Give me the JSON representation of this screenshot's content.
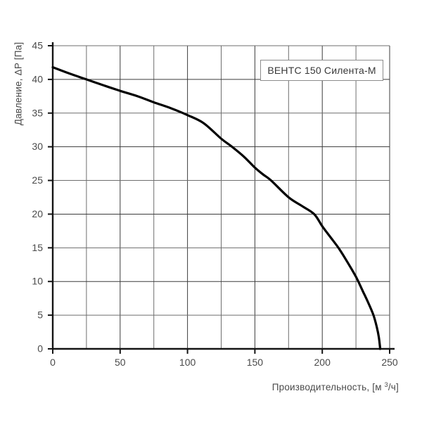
{
  "chart": {
    "model_label": "ВЕНТС 150 Силента-М",
    "ylabel": "Давление, ΔP [Па]",
    "xlabel_prefix": "Производительность, [м ",
    "xlabel_sup": "3",
    "xlabel_suffix": "/ч]"
  },
  "chart_data": {
    "type": "line",
    "title": "ВЕНТС 150 Силента-М",
    "xlabel": "Производительность, [м³/ч]",
    "ylabel": "Давление, ΔP [Па]",
    "xlim": [
      0,
      250
    ],
    "ylim": [
      0,
      45
    ],
    "x_grid_step": 25,
    "y_grid_step": 5,
    "x_label_step": 50,
    "y_label_step": 5,
    "x_tick_labels": [
      0,
      50,
      100,
      150,
      200,
      250
    ],
    "y_tick_labels": [
      0,
      5,
      10,
      15,
      20,
      25,
      30,
      35,
      40,
      45
    ],
    "grid": true,
    "legend_position": "label box inside plot, top-right",
    "series": [
      {
        "name": "ВЕНТС 150 Силента-М",
        "color": "#000000",
        "points": [
          [
            0,
            41.8
          ],
          [
            12,
            40.9
          ],
          [
            25,
            40
          ],
          [
            38,
            39.1
          ],
          [
            50,
            38.3
          ],
          [
            63,
            37.5
          ],
          [
            75,
            36.6
          ],
          [
            88,
            35.7
          ],
          [
            100,
            34.7
          ],
          [
            112,
            33.5
          ],
          [
            125,
            31.2
          ],
          [
            133,
            30
          ],
          [
            142,
            28.5
          ],
          [
            150,
            26.9
          ],
          [
            156,
            25.9
          ],
          [
            162,
            25
          ],
          [
            175,
            22.5
          ],
          [
            185,
            21.2
          ],
          [
            194,
            20
          ],
          [
            200,
            18.2
          ],
          [
            206,
            16.6
          ],
          [
            212,
            15
          ],
          [
            218,
            13.1
          ],
          [
            225,
            10.7
          ],
          [
            230,
            8.6
          ],
          [
            234,
            6.9
          ],
          [
            238,
            5
          ],
          [
            240.5,
            3.2
          ],
          [
            242,
            1.7
          ],
          [
            243,
            0
          ]
        ]
      }
    ],
    "colors": {
      "curve": "#000000",
      "axis": "#141414",
      "grid_major": "#3c3c3c",
      "grid_minor": "#6e6e6e",
      "tick_text": "#4a4a4a",
      "background": "#ffffff",
      "label_box_border": "#8c8c8c"
    }
  }
}
